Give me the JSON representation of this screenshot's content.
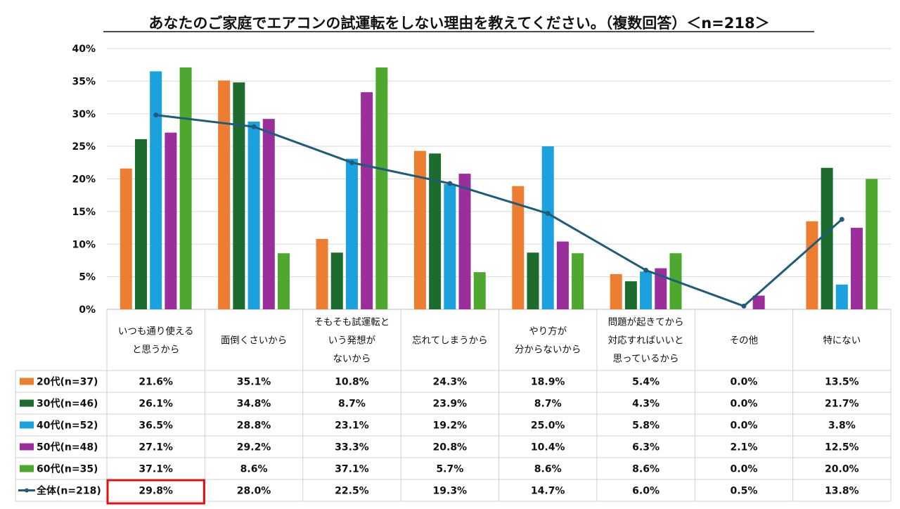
{
  "chart_data": {
    "type": "bar",
    "title": "あなたのご家庭でエアコンの試運転をしない理由を教えてください。（複数回答）＜n=218＞",
    "ylim": [
      0,
      40
    ],
    "yticks": [
      "0%",
      "5%",
      "10%",
      "15%",
      "20%",
      "25%",
      "30%",
      "35%",
      "40%"
    ],
    "grid": true,
    "legend_placement": "data-table-left",
    "categories": [
      [
        "いつも通り使える",
        "と思うから"
      ],
      [
        "面倒くさいから"
      ],
      [
        "そもそも試運転と",
        "いう発想が",
        "ないから"
      ],
      [
        "忘れてしまうから"
      ],
      [
        "やり方が",
        "分からないから"
      ],
      [
        "問題が起きてから",
        "対応すればいいと",
        "思っているから"
      ],
      [
        "その他"
      ],
      [
        "特にない"
      ]
    ],
    "series": [
      {
        "name": "20代(n=37)",
        "type": "bar",
        "color": "#ED7D31",
        "values": [
          21.6,
          35.1,
          10.8,
          24.3,
          18.9,
          5.4,
          0.0,
          13.5
        ],
        "labels": [
          "21.6%",
          "35.1%",
          "10.8%",
          "24.3%",
          "18.9%",
          "5.4%",
          "0.0%",
          "13.5%"
        ]
      },
      {
        "name": "30代(n=46)",
        "type": "bar",
        "color": "#1E6B2E",
        "values": [
          26.1,
          34.8,
          8.7,
          23.9,
          8.7,
          4.3,
          0.0,
          21.7
        ],
        "labels": [
          "26.1%",
          "34.8%",
          "8.7%",
          "23.9%",
          "8.7%",
          "4.3%",
          "0.0%",
          "21.7%"
        ]
      },
      {
        "name": "40代(n=52)",
        "type": "bar",
        "color": "#1BA1DE",
        "values": [
          36.5,
          28.8,
          23.1,
          19.2,
          25.0,
          5.8,
          0.0,
          3.8
        ],
        "labels": [
          "36.5%",
          "28.8%",
          "23.1%",
          "19.2%",
          "25.0%",
          "5.8%",
          "0.0%",
          "3.8%"
        ]
      },
      {
        "name": "50代(n=48)",
        "type": "bar",
        "color": "#9A2F9C",
        "values": [
          27.1,
          29.2,
          33.3,
          20.8,
          10.4,
          6.3,
          2.1,
          12.5
        ],
        "labels": [
          "27.1%",
          "29.2%",
          "33.3%",
          "20.8%",
          "10.4%",
          "6.3%",
          "2.1%",
          "12.5%"
        ]
      },
      {
        "name": "60代(n=35)",
        "type": "bar",
        "color": "#4EA72E",
        "values": [
          37.1,
          8.6,
          37.1,
          5.7,
          8.6,
          8.6,
          0.0,
          20.0
        ],
        "labels": [
          "37.1%",
          "8.6%",
          "37.1%",
          "5.7%",
          "8.6%",
          "8.6%",
          "0.0%",
          "20.0%"
        ]
      },
      {
        "name": "全体(n=218)",
        "type": "line",
        "color": "#1F5C7A",
        "values": [
          29.8,
          28.0,
          22.5,
          19.3,
          14.7,
          6.0,
          0.5,
          13.8
        ],
        "labels": [
          "29.8%",
          "28.0%",
          "22.5%",
          "19.3%",
          "14.7%",
          "6.0%",
          "0.5%",
          "13.8%"
        ]
      }
    ],
    "highlight": {
      "series": "全体(n=218)",
      "category_index": 0,
      "color": "#E01010"
    }
  }
}
